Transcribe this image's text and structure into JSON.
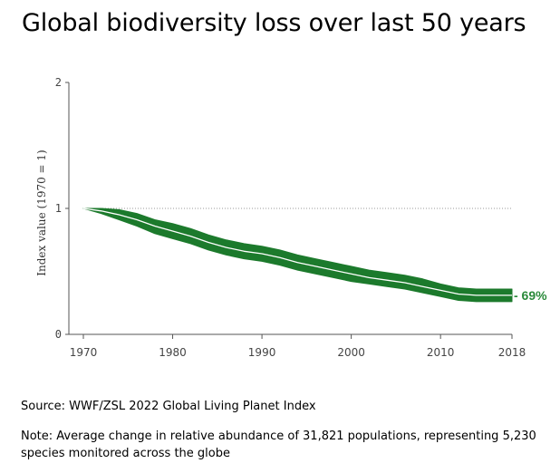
{
  "title": "Global biodiversity loss over last 50 years",
  "source": "Source: WWF/ZSL 2022 Global Living Planet Index",
  "note": "Note:  Average change in relative abundance of 31,821 populations, representing 5,230 species monitored across the globe",
  "colors": {
    "band": "#1c7a2c",
    "line": "#ffffff",
    "axis": "#555555",
    "reference": "#999999",
    "label": "#2a8a3a"
  },
  "chart_data": {
    "type": "area",
    "title": "Global biodiversity loss over last 50 years",
    "xlabel": "",
    "ylabel": "Index value (1970 = 1)",
    "xlim": [
      1970,
      2018
    ],
    "ylim": [
      0,
      2
    ],
    "xticks": [
      "1970",
      "1980",
      "1990",
      "2000",
      "2010",
      "2018"
    ],
    "yticks": [
      "0",
      "1",
      "2"
    ],
    "reference_line": 1,
    "end_label": "- 69%",
    "series": [
      {
        "name": "Living Planet Index",
        "x": [
          1970,
          1972,
          1974,
          1976,
          1978,
          1980,
          1982,
          1984,
          1986,
          1988,
          1990,
          1992,
          1994,
          1996,
          1998,
          2000,
          2002,
          2004,
          2006,
          2008,
          2010,
          2012,
          2014,
          2016,
          2018
        ],
        "y": [
          1.0,
          0.98,
          0.95,
          0.91,
          0.86,
          0.82,
          0.78,
          0.73,
          0.69,
          0.66,
          0.64,
          0.61,
          0.57,
          0.54,
          0.51,
          0.48,
          0.45,
          0.43,
          0.41,
          0.38,
          0.35,
          0.32,
          0.31,
          0.31,
          0.31
        ],
        "lower": [
          1.0,
          0.96,
          0.91,
          0.86,
          0.8,
          0.76,
          0.72,
          0.67,
          0.63,
          0.6,
          0.58,
          0.55,
          0.51,
          0.48,
          0.45,
          0.42,
          0.4,
          0.38,
          0.36,
          0.33,
          0.3,
          0.27,
          0.26,
          0.26,
          0.26
        ],
        "upper": [
          1.0,
          1.0,
          0.99,
          0.96,
          0.91,
          0.88,
          0.84,
          0.79,
          0.75,
          0.72,
          0.7,
          0.67,
          0.63,
          0.6,
          0.57,
          0.54,
          0.51,
          0.49,
          0.47,
          0.44,
          0.4,
          0.37,
          0.36,
          0.36,
          0.36
        ]
      }
    ]
  }
}
